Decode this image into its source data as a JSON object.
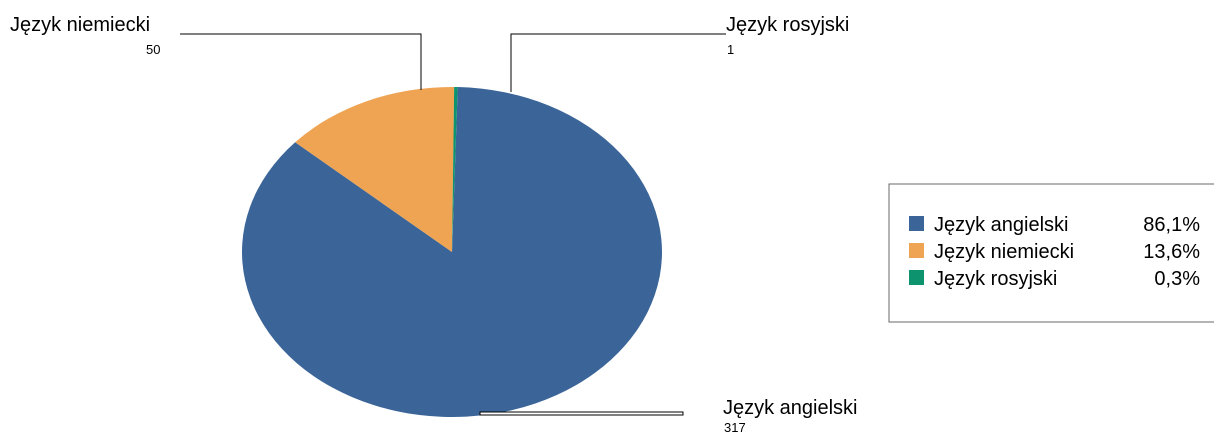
{
  "chart_data": {
    "type": "pie",
    "title": "",
    "legend_position": "right",
    "colors": [
      "#3b6598",
      "#efa453",
      "#0e936f"
    ],
    "slices": [
      {
        "label": "Język angielski",
        "value": 317,
        "percent": "86,1%"
      },
      {
        "label": "Język niemiecki",
        "value": 50,
        "percent": "13,6%"
      },
      {
        "label": "Język rosyjski",
        "value": 1,
        "percent": "0,3%"
      }
    ]
  }
}
